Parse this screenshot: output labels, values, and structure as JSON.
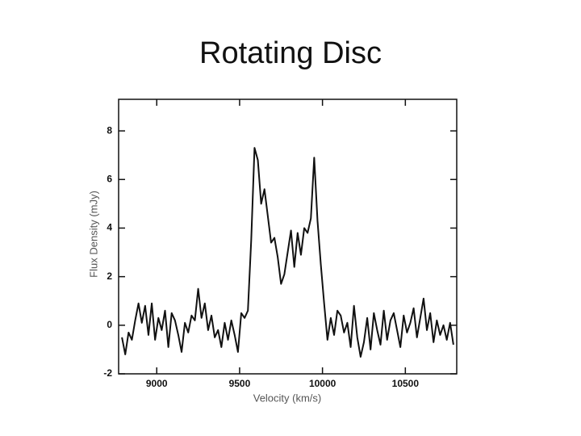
{
  "chart_data": {
    "type": "line",
    "title": "Rotating Disc",
    "x_label": "Velocity (km/s)",
    "y_label": "Flux Density (mJy)",
    "x": [
      8790,
      8810,
      8830,
      8850,
      8870,
      8890,
      8910,
      8930,
      8950,
      8970,
      8990,
      9010,
      9030,
      9050,
      9070,
      9090,
      9110,
      9130,
      9150,
      9170,
      9190,
      9210,
      9230,
      9250,
      9270,
      9290,
      9310,
      9330,
      9350,
      9370,
      9390,
      9410,
      9430,
      9450,
      9470,
      9490,
      9510,
      9530,
      9550,
      9570,
      9590,
      9610,
      9630,
      9650,
      9670,
      9690,
      9710,
      9730,
      9750,
      9770,
      9790,
      9810,
      9830,
      9850,
      9870,
      9890,
      9910,
      9930,
      9950,
      9970,
      9990,
      10010,
      10030,
      10050,
      10070,
      10090,
      10110,
      10130,
      10150,
      10170,
      10190,
      10210,
      10230,
      10250,
      10270,
      10290,
      10310,
      10330,
      10350,
      10370,
      10390,
      10410,
      10430,
      10450,
      10470,
      10490,
      10510,
      10530,
      10550,
      10570,
      10590,
      10610,
      10630,
      10650,
      10670,
      10690,
      10710,
      10730,
      10750,
      10770,
      10790
    ],
    "series": [
      {
        "color": "#111111",
        "values": [
          -0.5,
          -1.2,
          -0.3,
          -0.6,
          0.2,
          0.9,
          0.1,
          0.8,
          -0.4,
          0.9,
          -0.6,
          0.3,
          -0.2,
          0.6,
          -0.9,
          0.5,
          0.2,
          -0.4,
          -1.1,
          0.1,
          -0.3,
          0.4,
          0.2,
          1.5,
          0.3,
          0.9,
          -0.2,
          0.4,
          -0.5,
          -0.2,
          -0.9,
          0.1,
          -0.6,
          0.2,
          -0.4,
          -1.1,
          0.5,
          0.3,
          0.6,
          3.5,
          7.3,
          6.8,
          5.0,
          5.6,
          4.5,
          3.4,
          3.6,
          2.8,
          1.7,
          2.1,
          3.0,
          3.9,
          2.4,
          3.8,
          2.9,
          4.0,
          3.8,
          4.4,
          6.9,
          4.3,
          2.5,
          0.9,
          -0.6,
          0.3,
          -0.4,
          0.6,
          0.4,
          -0.3,
          0.1,
          -0.9,
          0.8,
          -0.5,
          -1.3,
          -0.7,
          0.3,
          -1.0,
          0.5,
          -0.2,
          -0.8,
          0.6,
          -0.6,
          0.2,
          0.5,
          -0.2,
          -0.9,
          0.4,
          -0.3,
          0.1,
          0.7,
          -0.5,
          0.3,
          1.1,
          -0.2,
          0.5,
          -0.7,
          0.2,
          -0.4,
          0.0,
          -0.6,
          0.1,
          -0.8
        ]
      }
    ],
    "xlim": [
      8770,
      10810
    ],
    "xticks": [
      9000,
      9500,
      10000,
      10500
    ],
    "ylim": [
      -2,
      9.3
    ],
    "yticks": [
      -2,
      0,
      2,
      4,
      6,
      8
    ]
  }
}
